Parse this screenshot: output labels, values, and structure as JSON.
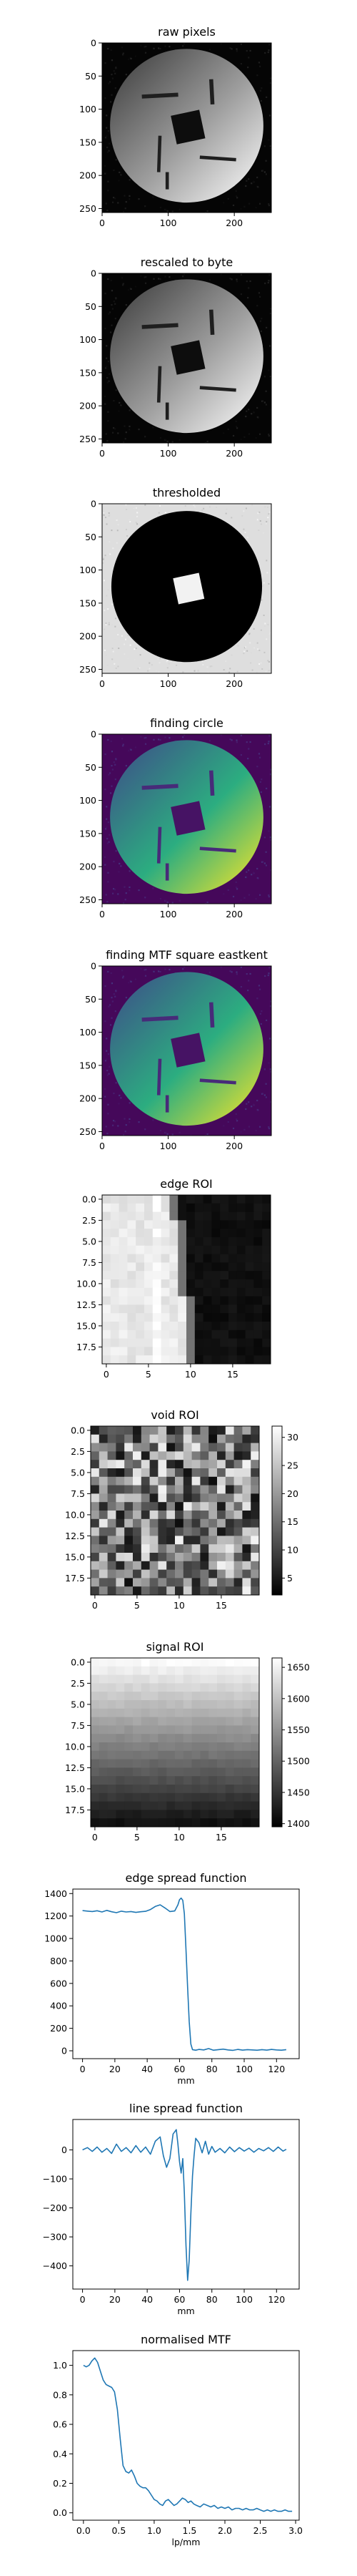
{
  "chart_data": [
    {
      "id": "raw",
      "type": "heatmap",
      "title": "raw pixels",
      "image": "phantom",
      "cmap": "gray",
      "xlim": [
        0,
        256
      ],
      "ylim": [
        256,
        0
      ],
      "xticks": [
        "0",
        "100",
        "200"
      ],
      "yticks": [
        "0",
        "50",
        "100",
        "150",
        "200",
        "250"
      ]
    },
    {
      "id": "byte",
      "type": "heatmap",
      "title": "rescaled to byte",
      "image": "phantom",
      "cmap": "gray",
      "xlim": [
        0,
        256
      ],
      "ylim": [
        256,
        0
      ],
      "xticks": [
        "0",
        "100",
        "200"
      ],
      "yticks": [
        "0",
        "50",
        "100",
        "150",
        "200",
        "250"
      ]
    },
    {
      "id": "thr",
      "type": "heatmap",
      "title": "thresholded",
      "image": "threshold",
      "cmap": "gray",
      "xlim": [
        0,
        256
      ],
      "ylim": [
        256,
        0
      ],
      "xticks": [
        "0",
        "100",
        "200"
      ],
      "yticks": [
        "0",
        "50",
        "100",
        "150",
        "200",
        "250"
      ]
    },
    {
      "id": "circ",
      "type": "heatmap",
      "title": "finding circle",
      "image": "phantom",
      "cmap": "viridis",
      "xlim": [
        0,
        256
      ],
      "ylim": [
        256,
        0
      ],
      "xticks": [
        "0",
        "100",
        "200"
      ],
      "yticks": [
        "0",
        "50",
        "100",
        "150",
        "200",
        "250"
      ]
    },
    {
      "id": "mtfsq",
      "type": "heatmap",
      "title": "finding MTF square eastkent",
      "image": "phantom",
      "cmap": "viridis",
      "xlim": [
        0,
        256
      ],
      "ylim": [
        256,
        0
      ],
      "xticks": [
        "0",
        "100",
        "200"
      ],
      "yticks": [
        "0",
        "50",
        "100",
        "150",
        "200",
        "250"
      ]
    },
    {
      "id": "edge",
      "type": "heatmap",
      "title": "edge ROI",
      "image": "edge",
      "cmap": "gray",
      "xlim": [
        0,
        20
      ],
      "ylim": [
        20,
        0
      ],
      "xticks": [
        "0",
        "5",
        "10",
        "15"
      ],
      "yticks": [
        "0.0",
        "2.5",
        "5.0",
        "7.5",
        "10.0",
        "12.5",
        "15.0",
        "17.5"
      ]
    },
    {
      "id": "void",
      "type": "heatmap",
      "title": "void ROI",
      "image": "void",
      "cmap": "gray",
      "xlim": [
        0,
        20
      ],
      "ylim": [
        20,
        0
      ],
      "xticks": [
        "0",
        "5",
        "10",
        "15"
      ],
      "yticks": [
        "0.0",
        "2.5",
        "5.0",
        "7.5",
        "10.0",
        "12.5",
        "15.0",
        "17.5"
      ],
      "colorbar": {
        "range": [
          2,
          32
        ],
        "ticks": [
          "30",
          "25",
          "20",
          "15",
          "10",
          "5"
        ]
      }
    },
    {
      "id": "signal",
      "type": "heatmap",
      "title": "signal ROI",
      "image": "signal",
      "cmap": "gray",
      "xlim": [
        0,
        20
      ],
      "ylim": [
        20,
        0
      ],
      "xticks": [
        "0",
        "5",
        "10",
        "15"
      ],
      "yticks": [
        "0.0",
        "2.5",
        "5.0",
        "7.5",
        "10.0",
        "12.5",
        "15.0",
        "17.5"
      ],
      "colorbar": {
        "range": [
          1395,
          1665
        ],
        "ticks": [
          "1650",
          "1600",
          "1550",
          "1500",
          "1450",
          "1400"
        ]
      }
    },
    {
      "id": "esf",
      "type": "line",
      "title": "edge spread function",
      "xlabel": "mm",
      "xlim": [
        -6,
        134
      ],
      "ylim": [
        -70,
        1440
      ],
      "xticks": [
        {
          "v": 0,
          "t": "0"
        },
        {
          "v": 20,
          "t": "20"
        },
        {
          "v": 40,
          "t": "40"
        },
        {
          "v": 60,
          "t": "60"
        },
        {
          "v": 80,
          "t": "80"
        },
        {
          "v": 100,
          "t": "100"
        },
        {
          "v": 120,
          "t": "120"
        }
      ],
      "yticks": [
        {
          "v": 0,
          "t": "0"
        },
        {
          "v": 200,
          "t": "200"
        },
        {
          "v": 400,
          "t": "400"
        },
        {
          "v": 600,
          "t": "600"
        },
        {
          "v": 800,
          "t": "800"
        },
        {
          "v": 1000,
          "t": "1000"
        },
        {
          "v": 1200,
          "t": "1200"
        },
        {
          "v": 1400,
          "t": "1400"
        }
      ],
      "series": [
        {
          "x": [
            0,
            3,
            6,
            9,
            12,
            15,
            18,
            21,
            24,
            27,
            30,
            33,
            36,
            39,
            42,
            45,
            48,
            51,
            54,
            57,
            59,
            60,
            61,
            62,
            63,
            64,
            65,
            66,
            67,
            68,
            70,
            72,
            75,
            78,
            81,
            84,
            87,
            90,
            93,
            96,
            99,
            102,
            105,
            108,
            111,
            114,
            117,
            120,
            123,
            126
          ],
          "y": [
            1248,
            1244,
            1240,
            1247,
            1236,
            1250,
            1238,
            1230,
            1243,
            1236,
            1240,
            1232,
            1238,
            1242,
            1258,
            1285,
            1300,
            1272,
            1240,
            1245,
            1300,
            1345,
            1360,
            1340,
            1220,
            900,
            560,
            260,
            60,
            10,
            5,
            12,
            8,
            20,
            5,
            10,
            15,
            8,
            4,
            12,
            6,
            10,
            8,
            5,
            10,
            6,
            12,
            8,
            5,
            10
          ]
        }
      ]
    },
    {
      "id": "lsf",
      "type": "line",
      "title": "line spread function",
      "xlabel": "mm",
      "xlim": [
        -6,
        134
      ],
      "ylim": [
        -480,
        105
      ],
      "xticks": [
        {
          "v": 0,
          "t": "0"
        },
        {
          "v": 20,
          "t": "20"
        },
        {
          "v": 40,
          "t": "40"
        },
        {
          "v": 60,
          "t": "60"
        },
        {
          "v": 80,
          "t": "80"
        },
        {
          "v": 100,
          "t": "100"
        },
        {
          "v": 120,
          "t": "120"
        }
      ],
      "yticks": [
        {
          "v": -400,
          "t": "−400"
        },
        {
          "v": -300,
          "t": "−300"
        },
        {
          "v": -200,
          "t": "−200"
        },
        {
          "v": -100,
          "t": "−100"
        },
        {
          "v": 0,
          "t": "0"
        }
      ],
      "series": [
        {
          "x": [
            0,
            3,
            6,
            9,
            12,
            15,
            18,
            21,
            24,
            27,
            30,
            33,
            36,
            39,
            42,
            45,
            48,
            50,
            52,
            54,
            56,
            58,
            59,
            60,
            61,
            62,
            63,
            64,
            65,
            66,
            67,
            68,
            69,
            70,
            72,
            74,
            76,
            78,
            80,
            82,
            85,
            88,
            91,
            94,
            97,
            100,
            103,
            106,
            109,
            112,
            115,
            118,
            121,
            124,
            126
          ],
          "y": [
            0,
            8,
            -5,
            10,
            -8,
            5,
            -12,
            20,
            -5,
            8,
            -10,
            15,
            -8,
            10,
            -15,
            30,
            45,
            -20,
            -60,
            -30,
            55,
            70,
            20,
            -40,
            -80,
            -30,
            -150,
            -330,
            -450,
            -380,
            -220,
            -90,
            -20,
            40,
            25,
            -10,
            30,
            -15,
            12,
            -8,
            5,
            -10,
            10,
            -6,
            8,
            -4,
            6,
            -8,
            5,
            -3,
            8,
            -5,
            10,
            -4,
            2
          ]
        }
      ]
    },
    {
      "id": "mtf",
      "type": "line",
      "title": "normalised MTF",
      "xlabel": "lp/mm",
      "xlim": [
        -0.15,
        3.05
      ],
      "ylim": [
        -0.05,
        1.1
      ],
      "xticks": [
        {
          "v": 0,
          "t": "0.0"
        },
        {
          "v": 0.5,
          "t": "0.5"
        },
        {
          "v": 1,
          "t": "1.0"
        },
        {
          "v": 1.5,
          "t": "1.5"
        },
        {
          "v": 2,
          "t": "2.0"
        },
        {
          "v": 2.5,
          "t": "2.5"
        },
        {
          "v": 3,
          "t": "3.0"
        }
      ],
      "yticks": [
        {
          "v": 0,
          "t": "0.0"
        },
        {
          "v": 0.2,
          "t": "0.2"
        },
        {
          "v": 0.4,
          "t": "0.4"
        },
        {
          "v": 0.6,
          "t": "0.6"
        },
        {
          "v": 0.8,
          "t": "0.8"
        },
        {
          "v": 1,
          "t": "1.0"
        }
      ],
      "series": [
        {
          "x": [
            0,
            0.04,
            0.08,
            0.12,
            0.16,
            0.2,
            0.24,
            0.28,
            0.32,
            0.36,
            0.4,
            0.44,
            0.48,
            0.52,
            0.56,
            0.6,
            0.64,
            0.68,
            0.72,
            0.76,
            0.8,
            0.84,
            0.88,
            0.92,
            0.96,
            1,
            1.04,
            1.08,
            1.12,
            1.16,
            1.2,
            1.24,
            1.28,
            1.32,
            1.36,
            1.4,
            1.44,
            1.48,
            1.52,
            1.56,
            1.6,
            1.65,
            1.7,
            1.75,
            1.8,
            1.85,
            1.9,
            1.95,
            2,
            2.05,
            2.1,
            2.15,
            2.2,
            2.25,
            2.3,
            2.35,
            2.4,
            2.45,
            2.5,
            2.55,
            2.6,
            2.65,
            2.7,
            2.75,
            2.8,
            2.85,
            2.9,
            2.95
          ],
          "y": [
            1.0,
            0.99,
            1.0,
            1.03,
            1.05,
            1.02,
            0.96,
            0.9,
            0.87,
            0.86,
            0.85,
            0.82,
            0.7,
            0.5,
            0.32,
            0.28,
            0.27,
            0.29,
            0.25,
            0.2,
            0.18,
            0.17,
            0.17,
            0.15,
            0.12,
            0.09,
            0.08,
            0.06,
            0.05,
            0.08,
            0.09,
            0.07,
            0.05,
            0.06,
            0.08,
            0.1,
            0.09,
            0.07,
            0.08,
            0.06,
            0.05,
            0.04,
            0.06,
            0.05,
            0.04,
            0.05,
            0.03,
            0.04,
            0.03,
            0.04,
            0.02,
            0.03,
            0.03,
            0.02,
            0.03,
            0.02,
            0.02,
            0.03,
            0.02,
            0.01,
            0.02,
            0.01,
            0.02,
            0.01,
            0.01,
            0.02,
            0.01,
            0.01
          ]
        }
      ]
    }
  ]
}
